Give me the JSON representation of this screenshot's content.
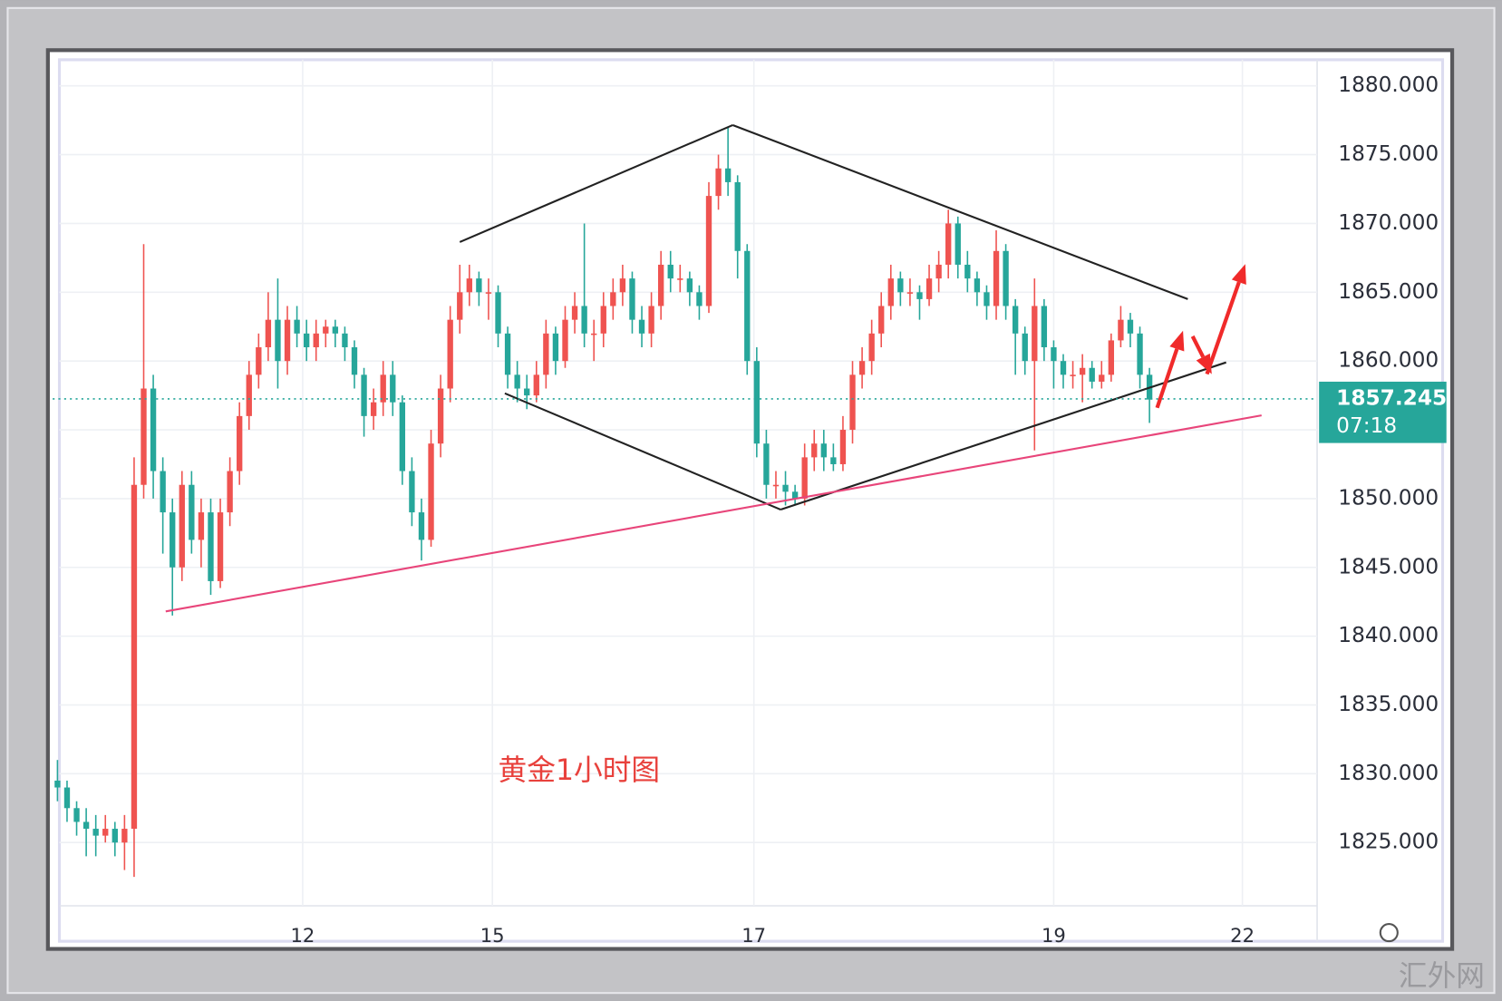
{
  "chart_data": {
    "type": "candlestick",
    "annotation": "黄金1小时图",
    "watermark": "汇外网",
    "up_color": "#ef5350",
    "down_color": "#26a69a",
    "xlim": [
      -0.5,
      131.5
    ],
    "xticks": [
      {
        "value": 25.6,
        "label": "12"
      },
      {
        "value": 45.4,
        "label": "15"
      },
      {
        "value": 72.7,
        "label": "17"
      },
      {
        "value": 104,
        "label": "19"
      },
      {
        "value": 123.7,
        "label": "22"
      }
    ],
    "ylim": [
      1820.4,
      1881.9
    ],
    "yticks": [
      {
        "value": 1825,
        "label": "1825.000"
      },
      {
        "value": 1830,
        "label": "1830.000"
      },
      {
        "value": 1835,
        "label": "1835.000"
      },
      {
        "value": 1840,
        "label": "1840.000"
      },
      {
        "value": 1845,
        "label": "1845.000"
      },
      {
        "value": 1850,
        "label": "1850.000"
      },
      {
        "value": 1855,
        "label": "1855.000"
      },
      {
        "value": 1860,
        "label": "1860.000"
      },
      {
        "value": 1865,
        "label": "1865.000"
      },
      {
        "value": 1870,
        "label": "1870.000"
      },
      {
        "value": 1875,
        "label": "1875.000"
      },
      {
        "value": 1880,
        "label": "1880.000"
      }
    ],
    "grid": true,
    "last_price": 1857.245,
    "countdown": "07:18",
    "candles": [
      [
        1829.5,
        1831,
        1828,
        1829
      ],
      [
        1829,
        1829.5,
        1826.5,
        1827.5
      ],
      [
        1827.5,
        1828,
        1825.5,
        1826.5
      ],
      [
        1826.5,
        1827.5,
        1824,
        1826
      ],
      [
        1826,
        1827,
        1824,
        1825.5
      ],
      [
        1825.5,
        1827,
        1825,
        1826
      ],
      [
        1826,
        1826.5,
        1824,
        1825
      ],
      [
        1825,
        1827,
        1823,
        1826
      ],
      [
        1826,
        1853,
        1822.5,
        1851
      ],
      [
        1851,
        1868.5,
        1850,
        1858
      ],
      [
        1858,
        1859,
        1850,
        1852
      ],
      [
        1852,
        1853,
        1846,
        1849
      ],
      [
        1849,
        1850,
        1841.5,
        1845
      ],
      [
        1845,
        1852,
        1844,
        1851
      ],
      [
        1851,
        1852,
        1846,
        1847
      ],
      [
        1847,
        1850,
        1845,
        1849
      ],
      [
        1849,
        1850,
        1843,
        1844
      ],
      [
        1844,
        1850,
        1843.5,
        1849
      ],
      [
        1849,
        1853,
        1848,
        1852
      ],
      [
        1852,
        1857,
        1851,
        1856
      ],
      [
        1856,
        1860,
        1855,
        1859
      ],
      [
        1859,
        1862,
        1858,
        1861
      ],
      [
        1861,
        1865,
        1860,
        1863
      ],
      [
        1863,
        1866,
        1858,
        1860
      ],
      [
        1860,
        1864,
        1859,
        1863
      ],
      [
        1863,
        1864,
        1861,
        1862
      ],
      [
        1862,
        1863,
        1860,
        1861
      ],
      [
        1861,
        1863,
        1860,
        1862
      ],
      [
        1862,
        1863,
        1861,
        1862.5
      ],
      [
        1862.5,
        1863,
        1861,
        1862
      ],
      [
        1862,
        1862.5,
        1860,
        1861
      ],
      [
        1861,
        1861.5,
        1858,
        1859
      ],
      [
        1859,
        1859.5,
        1854.5,
        1856
      ],
      [
        1856,
        1858,
        1855,
        1857
      ],
      [
        1857,
        1860,
        1856,
        1859
      ],
      [
        1859,
        1860,
        1856,
        1857
      ],
      [
        1857,
        1857.5,
        1851,
        1852
      ],
      [
        1852,
        1853,
        1848,
        1849
      ],
      [
        1849,
        1850,
        1845.5,
        1847
      ],
      [
        1847,
        1855,
        1846.5,
        1854
      ],
      [
        1854,
        1859,
        1853,
        1858
      ],
      [
        1858,
        1864,
        1857,
        1863
      ],
      [
        1863,
        1867,
        1862,
        1865
      ],
      [
        1865,
        1867,
        1864,
        1866
      ],
      [
        1866,
        1866.5,
        1864,
        1865
      ],
      [
        1865,
        1866,
        1863,
        1865
      ],
      [
        1865,
        1865.5,
        1861,
        1862
      ],
      [
        1862,
        1862.5,
        1858,
        1859
      ],
      [
        1859,
        1860,
        1857,
        1858
      ],
      [
        1858,
        1859,
        1856.5,
        1857.5
      ],
      [
        1857.5,
        1860,
        1857,
        1859
      ],
      [
        1859,
        1863,
        1858,
        1862
      ],
      [
        1862,
        1862.5,
        1859,
        1860
      ],
      [
        1860,
        1864,
        1859.5,
        1863
      ],
      [
        1863,
        1865,
        1862,
        1864
      ],
      [
        1864,
        1870,
        1861,
        1862
      ],
      [
        1862,
        1863,
        1860,
        1862
      ],
      [
        1862,
        1865,
        1861,
        1864
      ],
      [
        1864,
        1866,
        1863,
        1865
      ],
      [
        1865,
        1867,
        1864,
        1866
      ],
      [
        1866,
        1866.5,
        1862,
        1863
      ],
      [
        1863,
        1864,
        1861,
        1862
      ],
      [
        1862,
        1865,
        1861,
        1864
      ],
      [
        1864,
        1868,
        1863,
        1867
      ],
      [
        1867,
        1868,
        1865,
        1866
      ],
      [
        1866,
        1867,
        1865,
        1866
      ],
      [
        1866,
        1866.5,
        1864,
        1865
      ],
      [
        1865,
        1865.5,
        1863,
        1864
      ],
      [
        1864,
        1873,
        1863.5,
        1872
      ],
      [
        1872,
        1875,
        1871,
        1874
      ],
      [
        1874,
        1877,
        1872,
        1873
      ],
      [
        1873,
        1873.5,
        1866,
        1868
      ],
      [
        1868,
        1868.5,
        1859,
        1860
      ],
      [
        1860,
        1861,
        1853,
        1854
      ],
      [
        1854,
        1855,
        1850,
        1851
      ],
      [
        1851,
        1852,
        1850,
        1851
      ],
      [
        1851,
        1852,
        1849.5,
        1850.5
      ],
      [
        1850.5,
        1851,
        1849.5,
        1850
      ],
      [
        1850,
        1854,
        1849.5,
        1853
      ],
      [
        1853,
        1855,
        1852,
        1854
      ],
      [
        1854,
        1855,
        1852,
        1853
      ],
      [
        1853,
        1854,
        1852,
        1852.5
      ],
      [
        1852.5,
        1856,
        1852,
        1855
      ],
      [
        1855,
        1860,
        1854,
        1859
      ],
      [
        1859,
        1861,
        1858,
        1860
      ],
      [
        1860,
        1863,
        1859,
        1862
      ],
      [
        1862,
        1865,
        1861,
        1864
      ],
      [
        1864,
        1867,
        1863,
        1866
      ],
      [
        1866,
        1866.5,
        1864,
        1865
      ],
      [
        1865,
        1866,
        1864,
        1865
      ],
      [
        1865,
        1865.5,
        1863,
        1864.5
      ],
      [
        1864.5,
        1867,
        1864,
        1866
      ],
      [
        1866,
        1868,
        1865,
        1867
      ],
      [
        1867,
        1871,
        1866,
        1870
      ],
      [
        1870,
        1870.5,
        1866,
        1867
      ],
      [
        1867,
        1868,
        1865,
        1866
      ],
      [
        1866,
        1866.5,
        1864,
        1865
      ],
      [
        1865,
        1865.5,
        1863,
        1864
      ],
      [
        1864,
        1869.5,
        1863,
        1868
      ],
      [
        1868,
        1868.5,
        1863,
        1864
      ],
      [
        1864,
        1864.5,
        1859,
        1862
      ],
      [
        1862,
        1862.5,
        1859,
        1860
      ],
      [
        1860,
        1866,
        1853.5,
        1864
      ],
      [
        1864,
        1864.5,
        1860,
        1861
      ],
      [
        1861,
        1861.5,
        1858,
        1860
      ],
      [
        1860,
        1860.5,
        1858,
        1859
      ],
      [
        1859,
        1860,
        1858,
        1859
      ],
      [
        1859,
        1860.5,
        1857,
        1859.5
      ],
      [
        1859.5,
        1860,
        1858,
        1858.5
      ],
      [
        1858.5,
        1860,
        1858,
        1859
      ],
      [
        1859,
        1862,
        1858.5,
        1861.5
      ],
      [
        1861.5,
        1864,
        1861,
        1863
      ],
      [
        1863,
        1863.5,
        1861,
        1862
      ],
      [
        1862,
        1862.5,
        1858,
        1859
      ],
      [
        1859,
        1859.5,
        1855.5,
        1857.2
      ]
    ],
    "trendlines": [
      {
        "color": "#222222",
        "points": [
          [
            42,
            1868.65
          ],
          [
            70.5,
            1877.15
          ]
        ]
      },
      {
        "color": "#222222",
        "points": [
          [
            70.5,
            1877.15
          ],
          [
            118,
            1864.5
          ]
        ]
      },
      {
        "color": "#222222",
        "points": [
          [
            46.7,
            1857.65
          ],
          [
            75.5,
            1849.2
          ]
        ]
      },
      {
        "color": "#222222",
        "points": [
          [
            75.5,
            1849.2
          ],
          [
            122,
            1859.9
          ]
        ]
      },
      {
        "color": "#e8457a",
        "points": [
          [
            11.3,
            1841.8
          ],
          [
            125.7,
            1856.05
          ]
        ]
      }
    ],
    "arrows": [
      {
        "color": "#f02a2a",
        "points": [
          [
            114.8,
            1856.6
          ],
          [
            117.5,
            1862.2
          ]
        ]
      },
      {
        "color": "#f02a2a",
        "points": [
          [
            118.5,
            1861.8
          ],
          [
            120.5,
            1859.05
          ]
        ]
      },
      {
        "color": "#f02a2a",
        "points": [
          [
            120,
            1859.05
          ],
          [
            124,
            1867.05
          ]
        ]
      }
    ]
  }
}
